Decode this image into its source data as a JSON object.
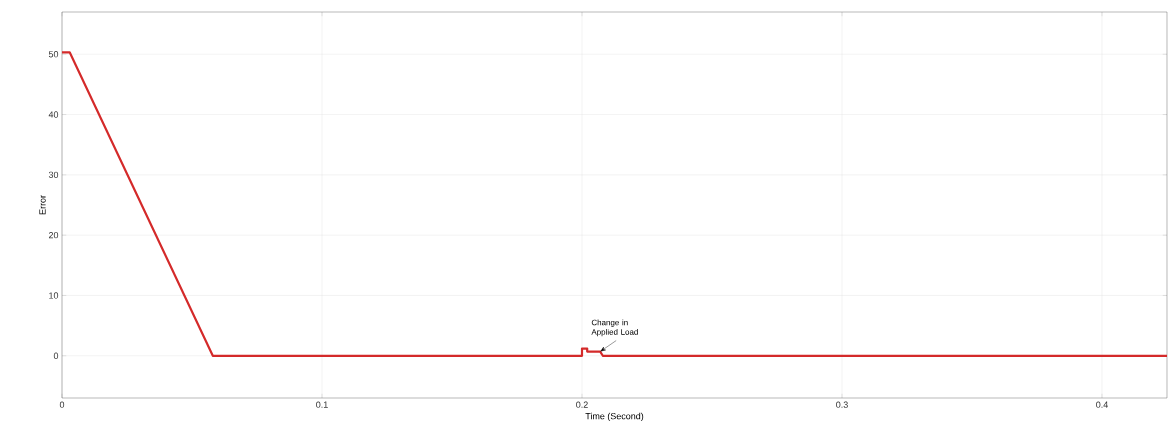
{
  "chart_data": {
    "type": "line",
    "xlabel": "Time (Second)",
    "ylabel": "Error",
    "x": [
      0,
      0.003,
      0.058,
      0.2,
      0.2,
      0.202,
      0.202,
      0.207,
      0.208,
      0.425
    ],
    "series": [
      {
        "color": "#d42a2a",
        "values": [
          50.3,
          50.3,
          0,
          0,
          1.2,
          1.2,
          0.7,
          0.7,
          0,
          0
        ]
      }
    ],
    "xlim": [
      0,
      0.425
    ],
    "ylim": [
      -7,
      57
    ],
    "xticks": [
      0,
      0.1,
      0.2,
      0.3,
      0.4
    ],
    "yticks": [
      0,
      10,
      20,
      30,
      40,
      50
    ],
    "grid": true,
    "annotations": [
      {
        "text": "Change in Applied Load",
        "x": 0.207,
        "y": 0.7
      }
    ]
  }
}
